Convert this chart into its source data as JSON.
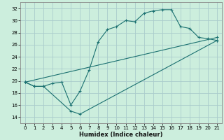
{
  "xlabel": "Humidex (Indice chaleur)",
  "bg_color": "#cceedd",
  "grid_color": "#aacccc",
  "line_color": "#1a7070",
  "xlim": [
    -0.5,
    21.5
  ],
  "ylim": [
    13,
    33
  ],
  "xticks": [
    0,
    1,
    2,
    3,
    4,
    5,
    6,
    7,
    8,
    9,
    10,
    11,
    12,
    13,
    14,
    15,
    16,
    17,
    18,
    19,
    20,
    21
  ],
  "yticks": [
    14,
    16,
    18,
    20,
    22,
    24,
    26,
    28,
    30,
    32
  ],
  "line1_x": [
    0,
    1,
    2,
    3,
    4,
    5,
    6,
    7,
    8,
    9,
    10,
    11,
    12,
    13,
    14,
    15,
    16,
    17,
    18,
    19,
    20,
    21
  ],
  "line1_y": [
    19.8,
    19.1,
    19.1,
    19.6,
    19.8,
    16.0,
    18.3,
    21.8,
    26.5,
    28.5,
    29.0,
    30.0,
    29.8,
    31.2,
    31.6,
    31.8,
    31.8,
    29.0,
    28.7,
    27.2,
    27.0,
    26.7
  ],
  "line2_x": [
    0,
    1,
    2,
    5,
    6,
    21
  ],
  "line2_y": [
    19.8,
    19.1,
    19.1,
    15.0,
    14.5,
    26.7
  ],
  "line3_x": [
    0,
    21
  ],
  "line3_y": [
    19.8,
    27.2
  ],
  "xlabel_fontsize": 6.0,
  "tick_fontsize": 5.0
}
